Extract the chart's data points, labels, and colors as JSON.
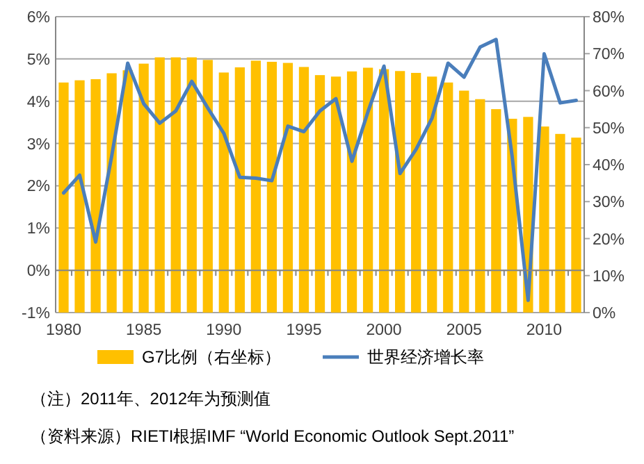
{
  "chart_data": {
    "type": "bar",
    "categories": [
      "1980",
      null,
      null,
      null,
      null,
      "1985",
      null,
      null,
      null,
      null,
      "1990",
      null,
      null,
      null,
      null,
      "1995",
      null,
      null,
      null,
      null,
      "2000",
      null,
      null,
      null,
      null,
      "2005",
      null,
      null,
      null,
      null,
      "2010",
      null,
      null
    ],
    "series": [
      {
        "name": "G7比例（右坐标）",
        "axis": "y2",
        "color": "#ffc000",
        "values": [
          62.2,
          62.8,
          63.1,
          64.7,
          65.5,
          67.3,
          69.0,
          69.0,
          69.0,
          68.3,
          64.9,
          66.3,
          68.1,
          67.8,
          67.5,
          66.4,
          64.2,
          63.8,
          65.2,
          66.2,
          65.8,
          65.3,
          64.8,
          63.8,
          62.2,
          60.0,
          57.7,
          55.0,
          52.4,
          52.9,
          50.3,
          48.3,
          47.3
        ]
      },
      {
        "name": "世界经济增长率",
        "type": "line",
        "color": "#4a7ebb",
        "values": [
          1.83,
          2.25,
          0.67,
          2.7,
          4.9,
          3.94,
          3.48,
          3.77,
          4.47,
          3.84,
          3.24,
          2.2,
          2.18,
          2.12,
          3.41,
          3.28,
          3.77,
          4.06,
          2.58,
          3.75,
          4.83,
          2.29,
          2.86,
          3.6,
          4.9,
          4.57,
          5.28,
          5.46,
          2.7,
          -0.71,
          5.12,
          3.96,
          4.02
        ]
      }
    ],
    "ylim": [
      -1,
      6
    ],
    "yticks": [
      {
        "value": -1,
        "label": "-1%"
      },
      {
        "value": 0,
        "label": "0%"
      },
      {
        "value": 1,
        "label": "1%"
      },
      {
        "value": 2,
        "label": "2%"
      },
      {
        "value": 3,
        "label": "3%"
      },
      {
        "value": 4,
        "label": "4%"
      },
      {
        "value": 5,
        "label": "5%"
      },
      {
        "value": 6,
        "label": "6%"
      }
    ],
    "y2lim": [
      0,
      80
    ],
    "y2ticks": [
      {
        "value": 0,
        "label": "0%"
      },
      {
        "value": 10,
        "label": "10%"
      },
      {
        "value": 20,
        "label": "20%"
      },
      {
        "value": 30,
        "label": "30%"
      },
      {
        "value": 40,
        "label": "40%"
      },
      {
        "value": 50,
        "label": "50%"
      },
      {
        "value": 60,
        "label": "60%"
      },
      {
        "value": 70,
        "label": "70%"
      },
      {
        "value": 80,
        "label": "80%"
      }
    ],
    "grid": "y",
    "legend": "bottom",
    "line_style": "solid",
    "marker": "none",
    "annotations": [
      "（注）2011年、2012年为预测值",
      "（资料来源）RIETI根据IMF “World Economic Outlook Sept.2011”"
    ]
  }
}
